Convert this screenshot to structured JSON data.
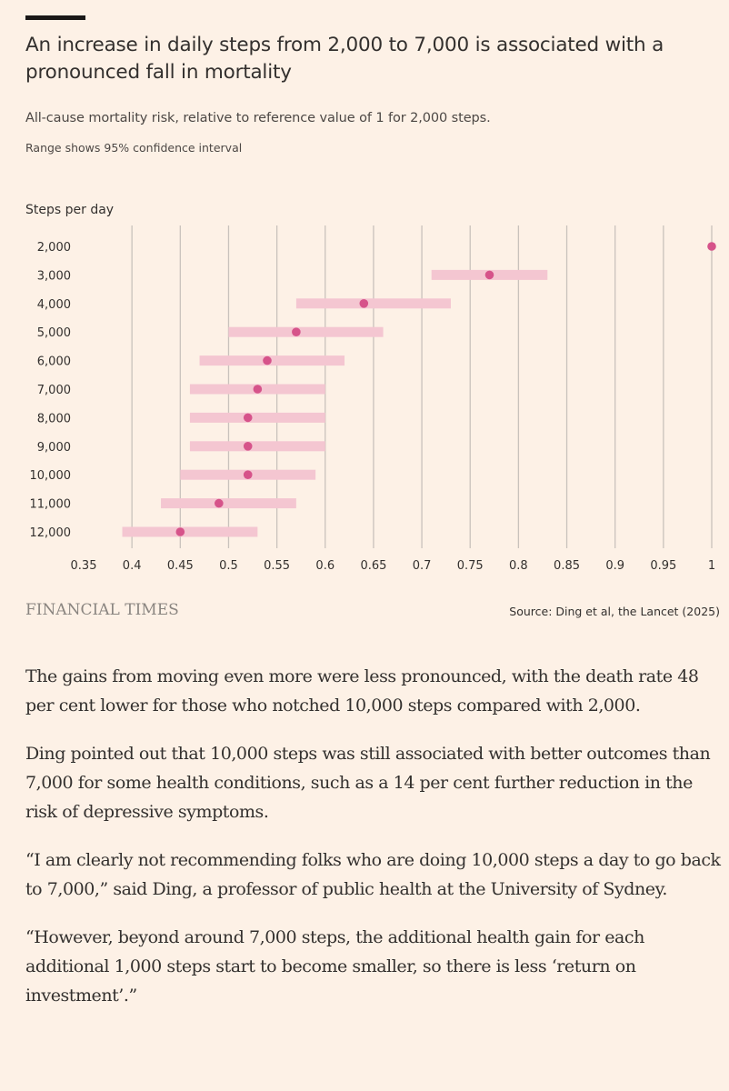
{
  "header": {
    "title": "An increase in daily steps from 2,000 to 7,000 is associated with a pronounced fall in mortality",
    "subtitle": "All-cause mortality risk, relative to reference value of 1 for 2,000 steps.",
    "note": "Range shows 95% confidence interval"
  },
  "chart_data": {
    "type": "scatter",
    "title": "An increase in daily steps from 2,000 to 7,000 is associated with a pronounced fall in mortality",
    "ylabel": "Steps per day",
    "xlabel": "",
    "categories": [
      "2,000",
      "3,000",
      "4,000",
      "5,000",
      "6,000",
      "7,000",
      "8,000",
      "9,000",
      "10,000",
      "11,000",
      "12,000"
    ],
    "values": [
      1,
      0.77,
      0.64,
      0.57,
      0.54,
      0.53,
      0.52,
      0.52,
      0.52,
      0.49,
      0.45
    ],
    "ci_low": [
      1,
      0.71,
      0.57,
      0.5,
      0.47,
      0.46,
      0.46,
      0.46,
      0.45,
      0.43,
      0.39
    ],
    "ci_high": [
      1,
      0.83,
      0.73,
      0.66,
      0.62,
      0.6,
      0.6,
      0.6,
      0.59,
      0.57,
      0.53
    ],
    "xlim": [
      0.35,
      1
    ],
    "xticks": [
      "0.35",
      "0.4",
      "0.45",
      "0.5",
      "0.55",
      "0.6",
      "0.65",
      "0.7",
      "0.75",
      "0.8",
      "0.85",
      "0.9",
      "0.95",
      "1"
    ],
    "grid": true,
    "colors": {
      "point": "#d6538a",
      "range": "#f4c6d1",
      "grid": "#c9c2bc"
    }
  },
  "footer": {
    "brand": "FINANCIAL TIMES",
    "source": "Source: Ding et al, the Lancet (2025)"
  },
  "article": {
    "paragraphs": [
      "The gains from moving even more were less pronounced, with the death rate 48 per cent lower for those who notched 10,000 steps compared with 2,000.",
      "Ding pointed out that 10,000 steps was still associated with better outcomes than 7,000 for some health conditions, such as a 14 per cent further reduction in the risk of depressive symptoms.",
      "“I am clearly not recommending folks who are doing 10,000 steps a day to go back to 7,000,” said Ding, a professor of public health at the University of Sydney.",
      "“However, beyond around 7,000 steps, the additional health gain for each additional 1,000 steps start to become smaller, so there is less ‘return on investment’.”"
    ]
  }
}
